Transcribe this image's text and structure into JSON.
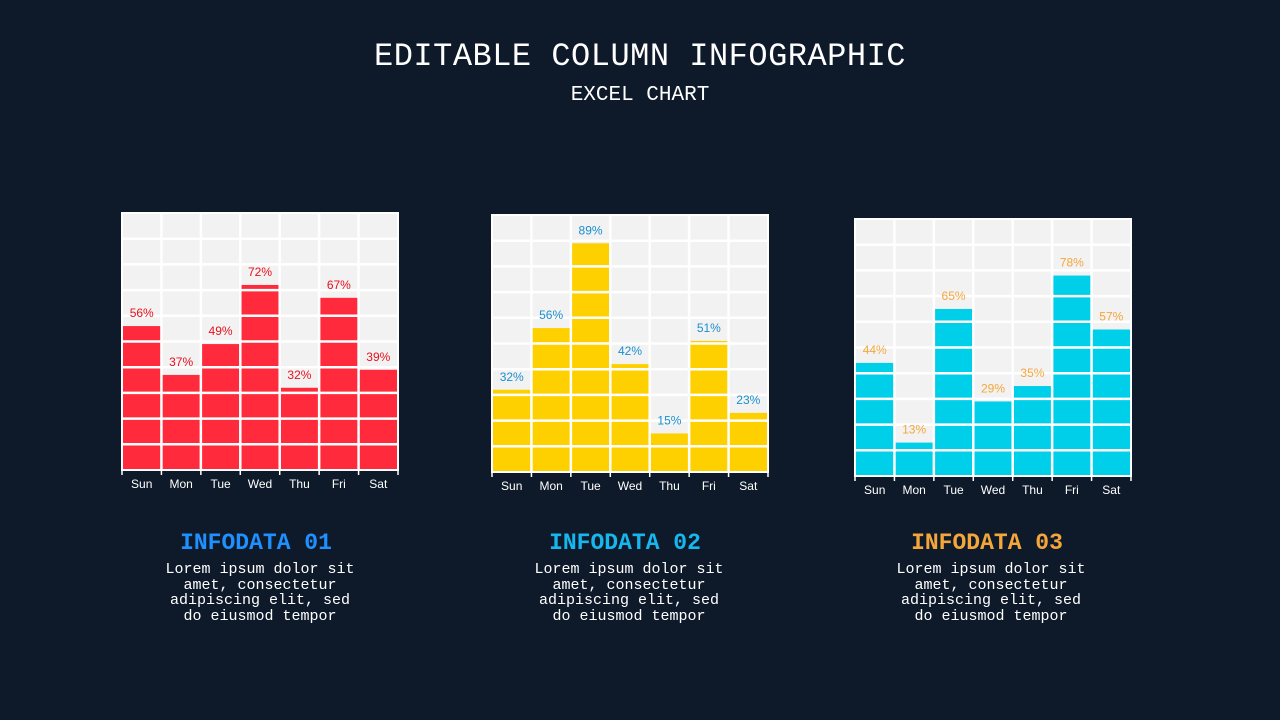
{
  "title": "EDITABLE COLUMN INFOGRAPHIC",
  "subtitle": "EXCEL CHART",
  "chart_data": [
    {
      "type": "bar",
      "categories": [
        "Sun",
        "Mon",
        "Tue",
        "Wed",
        "Thu",
        "Fri",
        "Sat"
      ],
      "values": [
        56,
        37,
        49,
        72,
        32,
        67,
        39
      ],
      "value_labels": [
        "56%",
        "37%",
        "49%",
        "72%",
        "32%",
        "67%",
        "39%"
      ],
      "ylim": [
        0,
        100
      ],
      "grid": true,
      "bar_color": "#ff2a3c",
      "label_color": "#e8101c"
    },
    {
      "type": "bar",
      "categories": [
        "Sun",
        "Mon",
        "Tue",
        "Wed",
        "Thu",
        "Fri",
        "Sat"
      ],
      "values": [
        32,
        56,
        89,
        42,
        15,
        51,
        23
      ],
      "value_labels": [
        "32%",
        "56%",
        "89%",
        "42%",
        "15%",
        "51%",
        "23%"
      ],
      "ylim": [
        0,
        100
      ],
      "grid": true,
      "bar_color": "#ffd000",
      "label_color": "#1a8fd0"
    },
    {
      "type": "bar",
      "categories": [
        "Sun",
        "Mon",
        "Tue",
        "Wed",
        "Thu",
        "Fri",
        "Sat"
      ],
      "values": [
        44,
        13,
        65,
        29,
        35,
        78,
        57
      ],
      "value_labels": [
        "44%",
        "13%",
        "65%",
        "29%",
        "35%",
        "78%",
        "57%"
      ],
      "ylim": [
        0,
        100
      ],
      "grid": true,
      "bar_color": "#00cfea",
      "label_color": "#f5a63a"
    }
  ],
  "infodata": [
    {
      "title": "INFODATA 01",
      "color": "#1e90ff",
      "text": "Lorem ipsum dolor sit amet, consectetur adipiscing elit, sed do eiusmod tempor"
    },
    {
      "title": "INFODATA 02",
      "color": "#15b7ee",
      "text": "Lorem ipsum dolor sit amet, consectetur adipiscing elit, sed do eiusmod tempor"
    },
    {
      "title": "INFODATA 03",
      "color": "#f5a63a",
      "text": "Lorem ipsum dolor sit amet, consectetur adipiscing elit, sed do eiusmod tempor"
    }
  ],
  "colors": {
    "background": "#0e1a2a",
    "plot_area": "#f2f2f2",
    "grid": "#ffffff"
  }
}
